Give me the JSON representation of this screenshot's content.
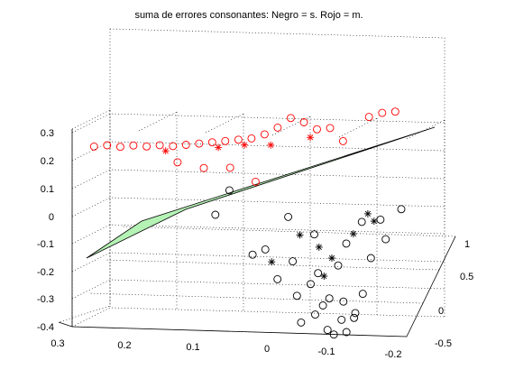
{
  "figure": {
    "title": "suma de errores consonantes: Negro = s. Rojo = m."
  },
  "chart_data": {
    "type": "scatter3d",
    "title": "suma de errores consonantes: Negro = s. Rojo = m.",
    "xlabel": "",
    "ylabel": "",
    "zlabel": "",
    "grid": true,
    "axes": {
      "x": {
        "ticks": [
          "0.3",
          "0.2",
          "0.1",
          "0",
          "-0.1",
          "-0.2"
        ]
      },
      "y": {
        "ticks": [
          "-0.5",
          "0",
          "0.5",
          "1"
        ]
      },
      "z": {
        "ticks": [
          "-0.4",
          "-0.3",
          "-0.2",
          "-0.1",
          "0",
          "0.1",
          "0.2",
          "0.3"
        ]
      }
    },
    "colors": {
      "red_series": "#ff0000",
      "black_series": "#000000",
      "plane_fill": "#b5f2b5",
      "plane_edge": "#000000"
    },
    "series": [
      {
        "color": "red",
        "markers": [
          {
            "symbol": "o",
            "points": [
              [
                -0.08,
                0.65,
                0.2
              ],
              [
                -0.06,
                0.68,
                0.24
              ],
              [
                -0.04,
                0.7,
                0.23
              ],
              [
                -0.02,
                0.72,
                0.25
              ],
              [
                0.0,
                0.74,
                0.26
              ],
              [
                0.02,
                0.76,
                0.22
              ],
              [
                0.04,
                0.78,
                0.19
              ],
              [
                0.06,
                0.8,
                0.17
              ],
              [
                0.08,
                0.82,
                0.16
              ],
              [
                0.1,
                0.84,
                0.15
              ],
              [
                0.12,
                0.86,
                0.14
              ],
              [
                0.14,
                0.88,
                0.13
              ],
              [
                0.16,
                0.9,
                0.12
              ],
              [
                0.18,
                0.92,
                0.11
              ],
              [
                0.2,
                0.93,
                0.11
              ],
              [
                0.22,
                0.95,
                0.1
              ],
              [
                0.24,
                0.96,
                0.1
              ],
              [
                0.26,
                0.98,
                0.09
              ],
              [
                0.28,
                1.0,
                0.09
              ],
              [
                0.3,
                1.02,
                0.08
              ],
              [
                -0.12,
                0.6,
                0.3
              ],
              [
                -0.14,
                0.58,
                0.32
              ],
              [
                -0.16,
                0.56,
                0.33
              ],
              [
                0.05,
                0.62,
                0.05
              ],
              [
                0.17,
                0.78,
                0.08
              ],
              [
                0.13,
                0.74,
                0.07
              ],
              [
                0.09,
                0.71,
                0.08
              ]
            ]
          },
          {
            "symbol": "*",
            "points": [
              [
                0.03,
                0.74,
                0.16
              ],
              [
                0.07,
                0.78,
                0.15
              ],
              [
                0.11,
                0.82,
                0.13
              ],
              [
                0.19,
                0.88,
                0.1
              ],
              [
                -0.03,
                0.7,
                0.2
              ]
            ]
          }
        ]
      },
      {
        "color": "black",
        "markers": [
          {
            "symbol": "o",
            "points": [
              [
                0.02,
                -0.1,
                -0.05
              ],
              [
                -0.02,
                -0.05,
                -0.1
              ],
              [
                -0.05,
                -0.2,
                -0.15
              ],
              [
                -0.08,
                -0.3,
                -0.18
              ],
              [
                -0.1,
                -0.25,
                -0.2
              ],
              [
                -0.12,
                -0.35,
                -0.22
              ],
              [
                -0.06,
                -0.15,
                -0.12
              ],
              [
                -0.04,
                -0.4,
                -0.25
              ],
              [
                -0.09,
                -0.45,
                -0.28
              ],
              [
                -0.11,
                -0.5,
                -0.26
              ],
              [
                -0.13,
                -0.3,
                -0.16
              ],
              [
                -0.07,
                -0.28,
                -0.21
              ],
              [
                -0.03,
                -0.22,
                -0.19
              ],
              [
                0.0,
                -0.18,
                -0.14
              ],
              [
                0.04,
                -0.05,
                -0.08
              ],
              [
                -0.14,
                -0.2,
                -0.05
              ],
              [
                -0.16,
                -0.1,
                0.0
              ],
              [
                -0.15,
                0.0,
                0.05
              ],
              [
                -0.18,
                0.05,
                0.08
              ],
              [
                0.08,
                0.2,
                0.1
              ],
              [
                0.1,
                0.15,
                0.02
              ],
              [
                -0.01,
                0.1,
                0.03
              ],
              [
                -0.05,
                0.05,
                -0.02
              ],
              [
                -0.1,
                -0.05,
                -0.03
              ],
              [
                -0.12,
                0.1,
                0.02
              ],
              [
                -0.09,
                -0.15,
                -0.09
              ],
              [
                -0.06,
                -0.35,
                -0.23
              ],
              [
                -0.08,
                -0.42,
                -0.27
              ],
              [
                -0.1,
                -0.38,
                -0.24
              ],
              [
                -0.12,
                -0.44,
                -0.22
              ]
            ]
          },
          {
            "symbol": "*",
            "points": [
              [
                -0.06,
                -0.08,
                -0.04
              ],
              [
                -0.08,
                -0.12,
                -0.07
              ],
              [
                -0.03,
                -0.02,
                -0.01
              ],
              [
                -0.14,
                0.02,
                0.04
              ],
              [
                -0.11,
                -0.02,
                0.0
              ],
              [
                -0.07,
                -0.2,
                -0.12
              ],
              [
                -0.13,
                0.05,
                0.06
              ],
              [
                0.01,
                -0.12,
                -0.09
              ]
            ]
          }
        ]
      }
    ],
    "surface": {
      "type": "plane",
      "fill": "#b5f2b5"
    }
  }
}
